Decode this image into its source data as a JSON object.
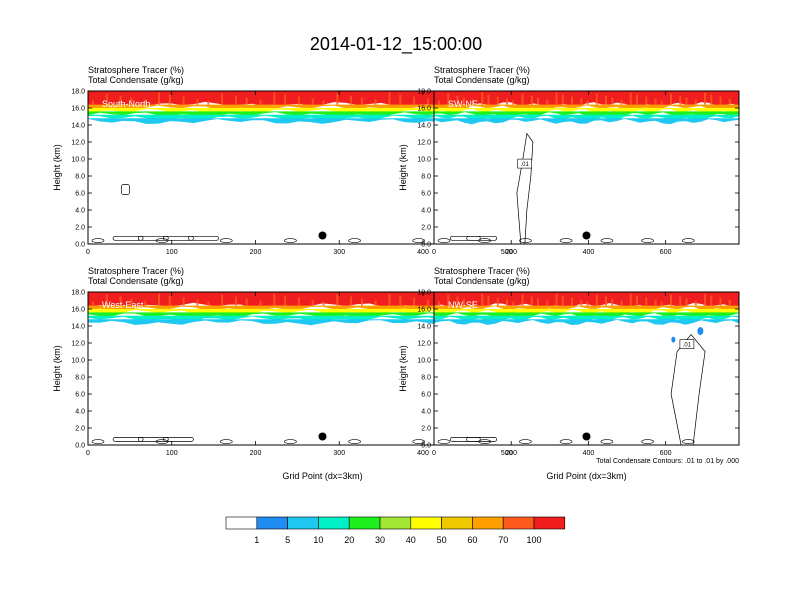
{
  "figure": {
    "title": "2014-01-12_15:00:00",
    "contour_note": "Total Condensate Contours: .01 to .01 by .000"
  },
  "colorbar": {
    "labels": [
      "1",
      "5",
      "10",
      "20",
      "30",
      "40",
      "50",
      "60",
      "70",
      "100"
    ],
    "colors": [
      "#ffffff",
      "#1e8cf0",
      "#1ec8f0",
      "#00f0c8",
      "#1ef01e",
      "#a0e632",
      "#ffff00",
      "#f0c800",
      "#ffa000",
      "#ff5a1e",
      "#f01e1e"
    ]
  },
  "chart_data": [
    {
      "type": "heatmap",
      "label": "South-North",
      "headers": [
        "Stratosphere Tracer   (%)",
        "Total Condensate   (g/kg)"
      ],
      "ylabel": "Height (km)",
      "xlabel": "",
      "ylim": [
        0,
        18
      ],
      "xlim": [
        0,
        560
      ],
      "yticks": [
        "0.0",
        "2.0",
        "4.0",
        "6.0",
        "8.0",
        "10.0",
        "12.0",
        "14.0",
        "16.0",
        "18.0"
      ],
      "xticks": [
        0,
        100,
        200,
        300,
        400,
        500
      ],
      "tracer_layers": [
        {
          "bottom": 16.4,
          "top": 18.0,
          "level": "100"
        },
        {
          "bottom": 16.0,
          "top": 16.4,
          "level": "60"
        },
        {
          "bottom": 15.6,
          "top": 16.0,
          "level": "40"
        },
        {
          "bottom": 15.2,
          "top": 15.6,
          "level": "20"
        },
        {
          "bottom": 14.8,
          "top": 15.2,
          "level": "10"
        },
        {
          "bottom": 14.4,
          "top": 14.8,
          "level": "5"
        }
      ],
      "contour_labels": [],
      "marker": {
        "x": 280,
        "y": 1.0
      }
    },
    {
      "type": "heatmap",
      "label": "SW-NE",
      "headers": [
        "Stratosphere Tracer   (%)",
        "Total Condensate   (g/kg)"
      ],
      "ylabel": "Height (km)",
      "xlabel": "",
      "ylim": [
        0,
        18
      ],
      "xlim": [
        0,
        790
      ],
      "yticks": [
        "0.0",
        "2.0",
        "4.0",
        "6.0",
        "8.0",
        "10.0",
        "12.0",
        "14.0",
        "16.0",
        "18.0"
      ],
      "xticks": [
        0,
        200,
        400,
        600
      ],
      "tracer_layers": [
        {
          "bottom": 16.4,
          "top": 18.0,
          "level": "100"
        },
        {
          "bottom": 16.0,
          "top": 16.4,
          "level": "60"
        },
        {
          "bottom": 15.6,
          "top": 16.0,
          "level": "40"
        },
        {
          "bottom": 15.2,
          "top": 15.6,
          "level": "20"
        },
        {
          "bottom": 14.8,
          "top": 15.2,
          "level": "10"
        },
        {
          "bottom": 14.4,
          "top": 14.8,
          "level": "5"
        }
      ],
      "contour_labels": [
        {
          "text": ".01",
          "x": 235,
          "y": 9.4
        }
      ],
      "marker": {
        "x": 395,
        "y": 1.0
      }
    },
    {
      "type": "heatmap",
      "label": "West-East",
      "headers": [
        "Stratosphere Tracer   (%)",
        "Total Condensate   (g/kg)"
      ],
      "ylabel": "Height (km)",
      "xlabel": "Grid Point (dx=3km)",
      "ylim": [
        0,
        18
      ],
      "xlim": [
        0,
        560
      ],
      "yticks": [
        "0.0",
        "2.0",
        "4.0",
        "6.0",
        "8.0",
        "10.0",
        "12.0",
        "14.0",
        "16.0",
        "18.0"
      ],
      "xticks": [
        0,
        100,
        200,
        300,
        400,
        500
      ],
      "tracer_layers": [
        {
          "bottom": 16.4,
          "top": 18.0,
          "level": "100"
        },
        {
          "bottom": 16.0,
          "top": 16.4,
          "level": "60"
        },
        {
          "bottom": 15.6,
          "top": 16.0,
          "level": "40"
        },
        {
          "bottom": 15.2,
          "top": 15.6,
          "level": "20"
        },
        {
          "bottom": 14.8,
          "top": 15.2,
          "level": "10"
        },
        {
          "bottom": 14.4,
          "top": 14.8,
          "level": "5"
        }
      ],
      "contour_labels": [],
      "marker": {
        "x": 280,
        "y": 1.0
      }
    },
    {
      "type": "heatmap",
      "label": "NW-SE",
      "headers": [
        "Stratosphere Tracer   (%)",
        "Total Condensate   (g/kg)"
      ],
      "ylabel": "Height (km)",
      "xlabel": "Grid Point (dx=3km)",
      "ylim": [
        0,
        18
      ],
      "xlim": [
        0,
        790
      ],
      "yticks": [
        "0.0",
        "2.0",
        "4.0",
        "6.0",
        "8.0",
        "10.0",
        "12.0",
        "14.0",
        "16.0",
        "18.0"
      ],
      "xticks": [
        0,
        200,
        400,
        600
      ],
      "tracer_layers": [
        {
          "bottom": 16.4,
          "top": 18.0,
          "level": "100"
        },
        {
          "bottom": 16.0,
          "top": 16.4,
          "level": "60"
        },
        {
          "bottom": 15.6,
          "top": 16.0,
          "level": "40"
        },
        {
          "bottom": 15.2,
          "top": 15.6,
          "level": "20"
        },
        {
          "bottom": 14.8,
          "top": 15.2,
          "level": "10"
        },
        {
          "bottom": 14.4,
          "top": 14.8,
          "level": "5"
        }
      ],
      "contour_labels": [
        {
          "text": ".01",
          "x": 655,
          "y": 11.8
        }
      ],
      "marker": {
        "x": 395,
        "y": 1.0
      }
    }
  ]
}
